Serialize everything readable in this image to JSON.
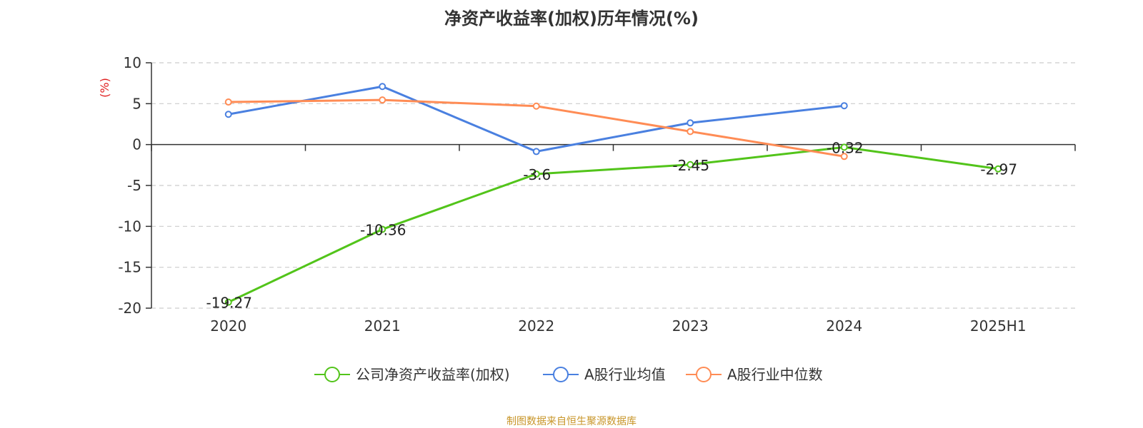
{
  "title": "净资产收益率(加权)历年情况(%)",
  "source": "制图数据来自恒生聚源数据库",
  "chart_data": {
    "type": "line",
    "title": "净资产收益率(加权)历年情况(%)",
    "ylabel": "(%)",
    "categories": [
      "2020",
      "2021",
      "2022",
      "2023",
      "2024",
      "2025H1"
    ],
    "ylim": [
      -20,
      10
    ],
    "yticks": [
      10,
      5,
      0,
      -5,
      -10,
      -15,
      -20
    ],
    "grid": true,
    "legend_position": "bottom",
    "series": [
      {
        "name": "公司净资产收益率(加权)",
        "color": "#52c41a",
        "values": [
          -19.27,
          -10.36,
          -3.6,
          -2.45,
          -0.32,
          -2.97
        ],
        "labels": [
          "-19.27",
          "-10.36",
          "-3.6",
          "-2.45",
          "-0.32",
          "-2.97"
        ]
      },
      {
        "name": "A股行业均值",
        "color": "#4a80e0",
        "values": [
          3.7,
          7.1,
          -0.85,
          2.65,
          4.75,
          null
        ]
      },
      {
        "name": "A股行业中位数",
        "color": "#ff8c55",
        "values": [
          5.2,
          5.45,
          4.7,
          1.6,
          -1.45,
          null
        ]
      }
    ]
  }
}
